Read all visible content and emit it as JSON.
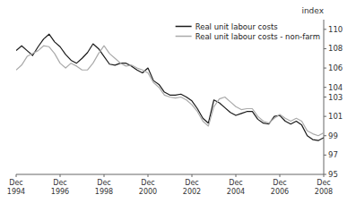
{
  "chart_data": {
    "type": "line",
    "y_label": "index",
    "categories": [
      "Dec\n1994",
      null,
      null,
      null,
      null,
      null,
      null,
      null,
      "Dec\n1996",
      null,
      null,
      null,
      null,
      null,
      null,
      null,
      "Dec\n1998",
      null,
      null,
      null,
      null,
      null,
      null,
      null,
      "Dec\n2000",
      null,
      null,
      null,
      null,
      null,
      null,
      null,
      "Dec\n2002",
      null,
      null,
      null,
      null,
      null,
      null,
      null,
      "Dec\n2004",
      null,
      null,
      null,
      null,
      null,
      null,
      null,
      "Dec\n2006",
      null,
      null,
      null,
      null,
      null,
      null,
      null,
      "Dec\n2008"
    ],
    "series": [
      {
        "name": "Real unit labour costs",
        "color": "#1a1a1a",
        "values": [
          107.8,
          108.3,
          107.8,
          107.3,
          108.2,
          109.0,
          109.5,
          108.7,
          108.2,
          107.4,
          106.8,
          106.5,
          107.0,
          107.6,
          108.5,
          108.0,
          107.2,
          106.4,
          106.3,
          106.5,
          106.5,
          106.2,
          105.8,
          105.5,
          106.0,
          104.7,
          104.3,
          103.5,
          103.2,
          103.2,
          103.3,
          103.0,
          102.6,
          101.8,
          100.8,
          100.3,
          102.7,
          102.4,
          101.9,
          101.4,
          101.1,
          101.3,
          101.5,
          101.5,
          100.7,
          100.3,
          100.2,
          101.0,
          101.1,
          100.5,
          100.2,
          100.5,
          100.1,
          99.0,
          98.6,
          98.5,
          98.8
        ]
      },
      {
        "name": "Real unit labour costs - non-farm",
        "color": "#aaaaaa",
        "values": [
          105.8,
          106.3,
          107.2,
          107.5,
          107.8,
          108.3,
          108.2,
          107.5,
          106.5,
          106.0,
          106.5,
          106.2,
          105.8,
          105.8,
          106.5,
          107.5,
          108.3,
          107.5,
          107.0,
          106.5,
          106.2,
          106.3,
          106.0,
          105.8,
          105.5,
          104.5,
          104.0,
          103.2,
          103.0,
          102.9,
          103.0,
          102.7,
          102.2,
          101.5,
          100.5,
          100.0,
          102.0,
          102.8,
          103.0,
          102.5,
          102.0,
          101.7,
          101.8,
          101.8,
          101.0,
          100.5,
          100.3,
          100.8,
          101.2,
          100.8,
          100.5,
          100.8,
          100.5,
          99.5,
          99.2,
          99.0,
          99.3
        ]
      }
    ],
    "ylim": [
      95,
      111
    ],
    "yticks": [
      95,
      97,
      99,
      101,
      103,
      104,
      106,
      108,
      110
    ],
    "grid": false,
    "legend": "upper right"
  }
}
